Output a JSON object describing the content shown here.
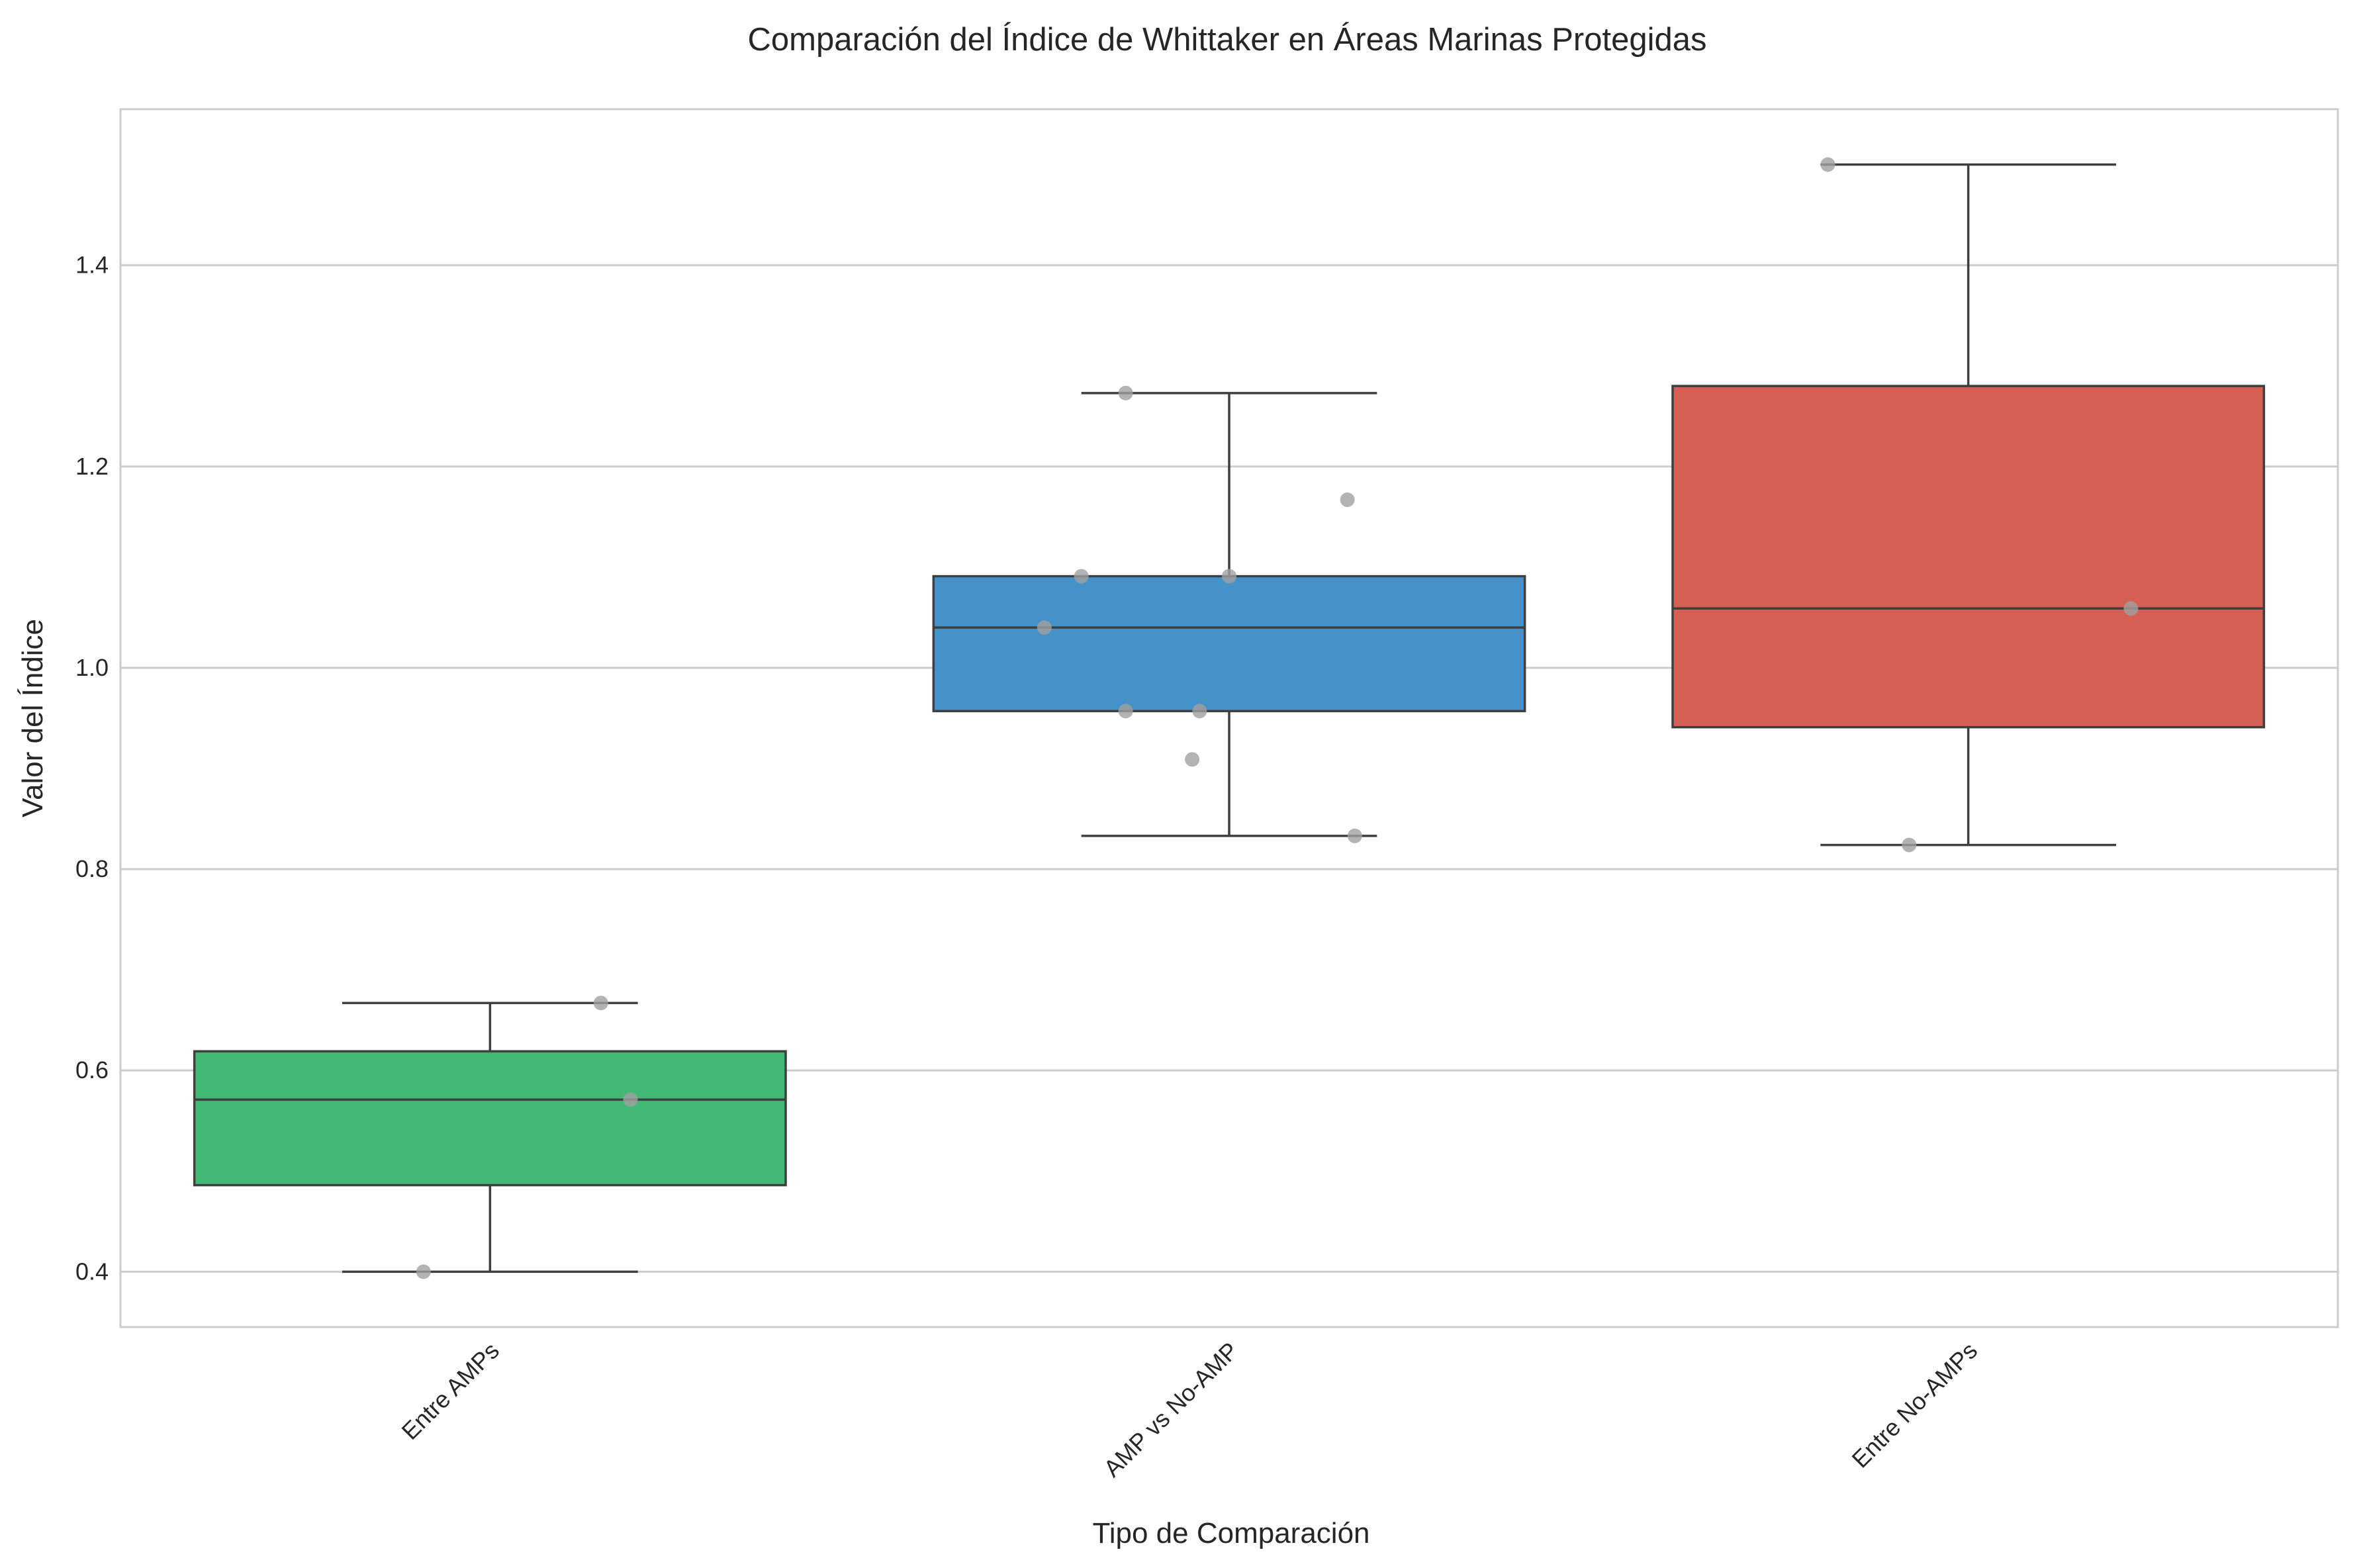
{
  "chart_data": {
    "type": "box",
    "title": "Comparación del Índice de Whittaker en Áreas Marinas Protegidas",
    "xlabel": "Tipo de Comparación",
    "ylabel": "Valor del Índice",
    "ylim": [
      0.345,
      1.555
    ],
    "yticks": [
      0.4,
      0.6,
      0.8,
      1.0,
      1.2,
      1.4
    ],
    "ytick_labels": [
      "0.4",
      "0.6",
      "0.8",
      "1.0",
      "1.2",
      "1.4"
    ],
    "grid": "horizontal",
    "categories": [
      "Entre AMPs",
      "AMP vs No-AMP",
      "Entre No-AMPs"
    ],
    "boxes": [
      {
        "category": "Entre AMPs",
        "color": "#41b873",
        "whisker_low": 0.4,
        "q1": 0.486,
        "median": 0.571,
        "q3": 0.619,
        "whisker_high": 0.667
      },
      {
        "category": "AMP vs No-AMP",
        "color": "#4592c8",
        "whisker_low": 0.833,
        "q1": 0.957,
        "median": 1.04,
        "q3": 1.091,
        "whisker_high": 1.273
      },
      {
        "category": "Entre No-AMPs",
        "color": "#d55f53",
        "whisker_low": 0.824,
        "q1": 0.941,
        "median": 1.059,
        "q3": 1.28,
        "whisker_high": 1.5
      }
    ],
    "points": [
      {
        "category": "Entre AMPs",
        "values": [
          0.4,
          0.667,
          0.571
        ]
      },
      {
        "category": "AMP vs No-AMP",
        "values": [
          1.273,
          1.167,
          1.091,
          1.091,
          1.04,
          0.957,
          0.957,
          0.909,
          0.833
        ]
      },
      {
        "category": "Entre No-AMPs",
        "values": [
          1.5,
          1.059,
          0.824
        ]
      }
    ],
    "point_color": "#a0a0a0"
  }
}
